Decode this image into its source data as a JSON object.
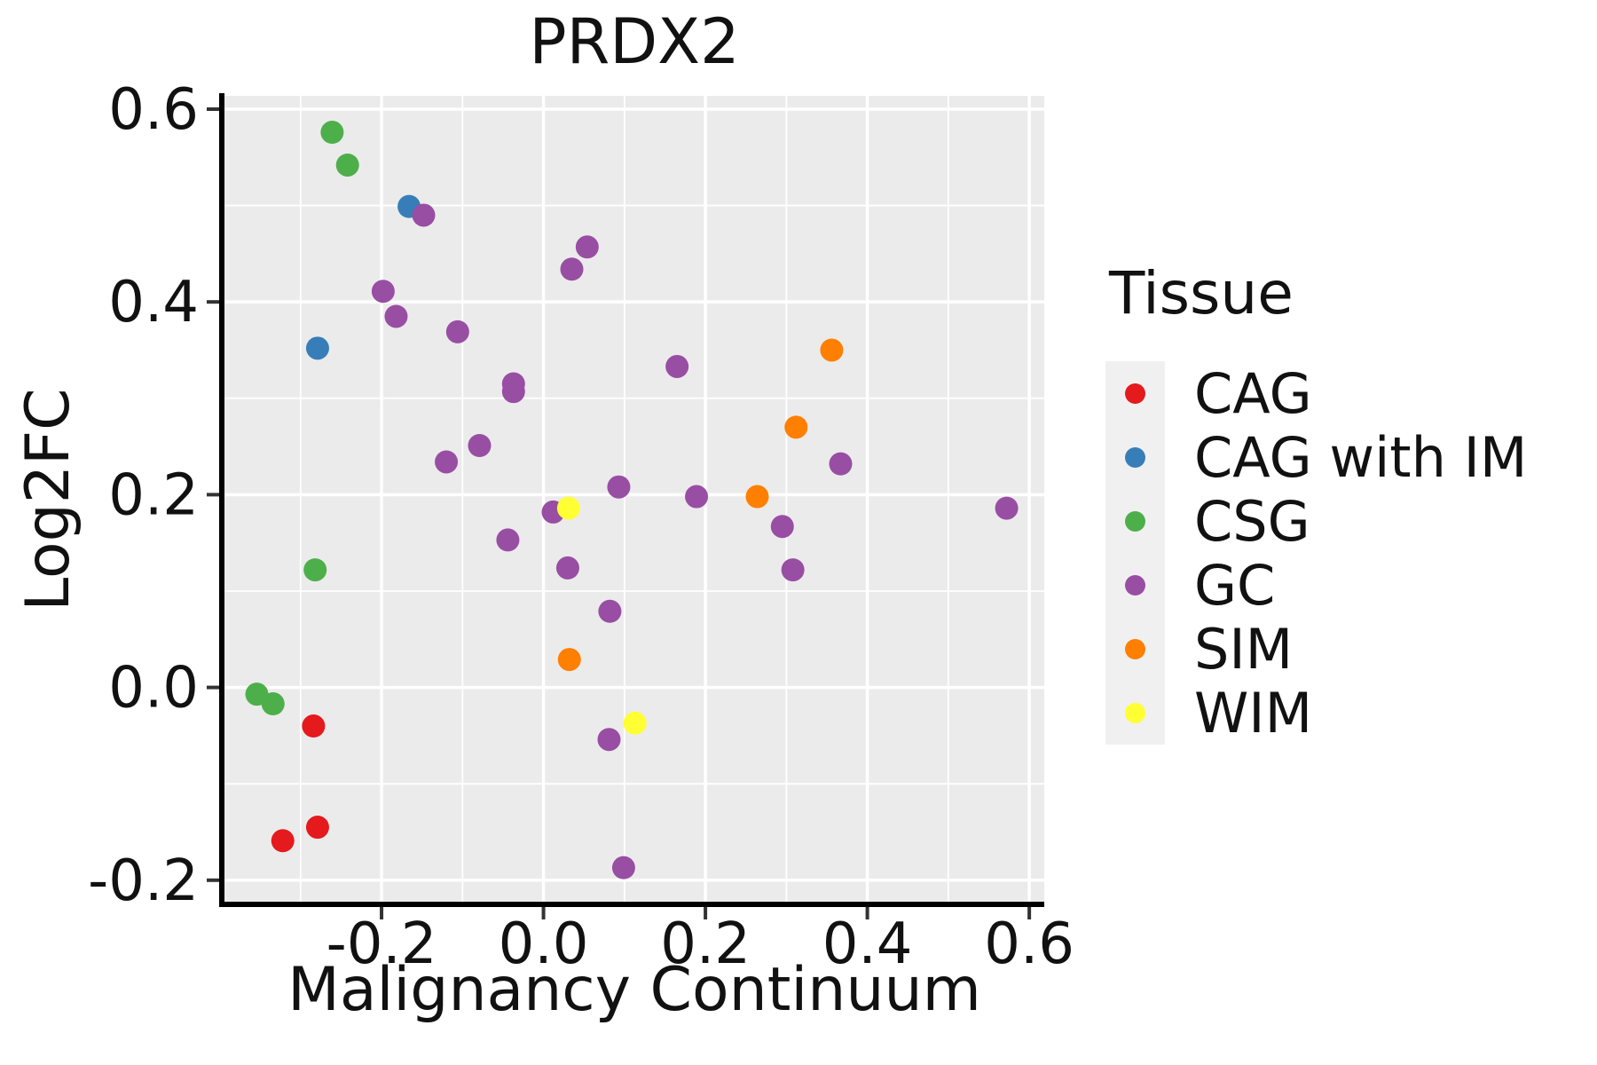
{
  "figure": {
    "title": "PRDX2",
    "xlabel": "Malignancy Continuum",
    "ylabel": "Log2FC",
    "legend_title": "Tissue"
  },
  "chart_data": {
    "type": "scatter",
    "title": "PRDX2",
    "xlabel": "Malignancy Continuum",
    "ylabel": "Log2FC",
    "legend_title": "Tissue",
    "legend_position": "right",
    "grid": true,
    "panel_background": "#EBEBEB",
    "grid_color": "#FFFFFF",
    "axis_line_color": "#000000",
    "tick_color": "#333333",
    "xlim": [
      -0.394,
      0.6185
    ],
    "ylim": [
      -0.2223,
      0.6138
    ],
    "x_major_ticks": [
      -0.2,
      0.0,
      0.2,
      0.4,
      0.6
    ],
    "x_tick_labels": [
      "-0.2",
      "0.0",
      "0.2",
      "0.4",
      "0.6"
    ],
    "x_minor_ticks": [
      -0.3,
      -0.1,
      0.1,
      0.3,
      0.5
    ],
    "y_major_ticks": [
      -0.2,
      0.0,
      0.2,
      0.4,
      0.6
    ],
    "y_tick_labels": [
      "-0.2",
      "0.0",
      "0.2",
      "0.4",
      "0.6"
    ],
    "y_minor_ticks": [
      -0.1,
      0.1,
      0.3,
      0.5
    ],
    "point_radius": 13,
    "series": [
      {
        "name": "CAG",
        "color": "#E41A1C",
        "points": [
          [
            -0.284,
            -0.04
          ],
          [
            -0.279,
            -0.145
          ],
          [
            -0.322,
            -0.159
          ]
        ]
      },
      {
        "name": "CAG with IM",
        "color": "#377EB8",
        "points": [
          [
            -0.166,
            0.499
          ],
          [
            -0.279,
            0.352
          ]
        ]
      },
      {
        "name": "CSG",
        "color": "#4DAF4A",
        "points": [
          [
            -0.261,
            0.576
          ],
          [
            -0.242,
            0.542
          ],
          [
            -0.282,
            0.122
          ],
          [
            -0.354,
            -0.007
          ],
          [
            -0.334,
            -0.017
          ]
        ]
      },
      {
        "name": "GC",
        "color": "#984EA3",
        "points": [
          [
            -0.148,
            0.49
          ],
          [
            -0.198,
            0.411
          ],
          [
            -0.182,
            0.385
          ],
          [
            -0.106,
            0.369
          ],
          [
            0.054,
            0.457
          ],
          [
            0.035,
            0.434
          ],
          [
            -0.037,
            0.315
          ],
          [
            -0.037,
            0.307
          ],
          [
            0.165,
            0.333
          ],
          [
            -0.079,
            0.251
          ],
          [
            -0.12,
            0.234
          ],
          [
            0.367,
            0.232
          ],
          [
            0.093,
            0.208
          ],
          [
            0.189,
            0.198
          ],
          [
            0.012,
            0.182
          ],
          [
            0.572,
            0.186
          ],
          [
            0.295,
            0.167
          ],
          [
            -0.044,
            0.153
          ],
          [
            0.03,
            0.124
          ],
          [
            0.308,
            0.122
          ],
          [
            0.082,
            0.079
          ],
          [
            0.081,
            -0.054
          ],
          [
            0.099,
            -0.187
          ]
        ]
      },
      {
        "name": "SIM",
        "color": "#FF7F00",
        "points": [
          [
            0.356,
            0.35
          ],
          [
            0.312,
            0.27
          ],
          [
            0.264,
            0.198
          ],
          [
            0.032,
            0.029
          ]
        ]
      },
      {
        "name": "WIM",
        "color": "#FFFF33",
        "points": [
          [
            0.031,
            0.186
          ],
          [
            0.113,
            -0.037
          ]
        ]
      }
    ]
  }
}
